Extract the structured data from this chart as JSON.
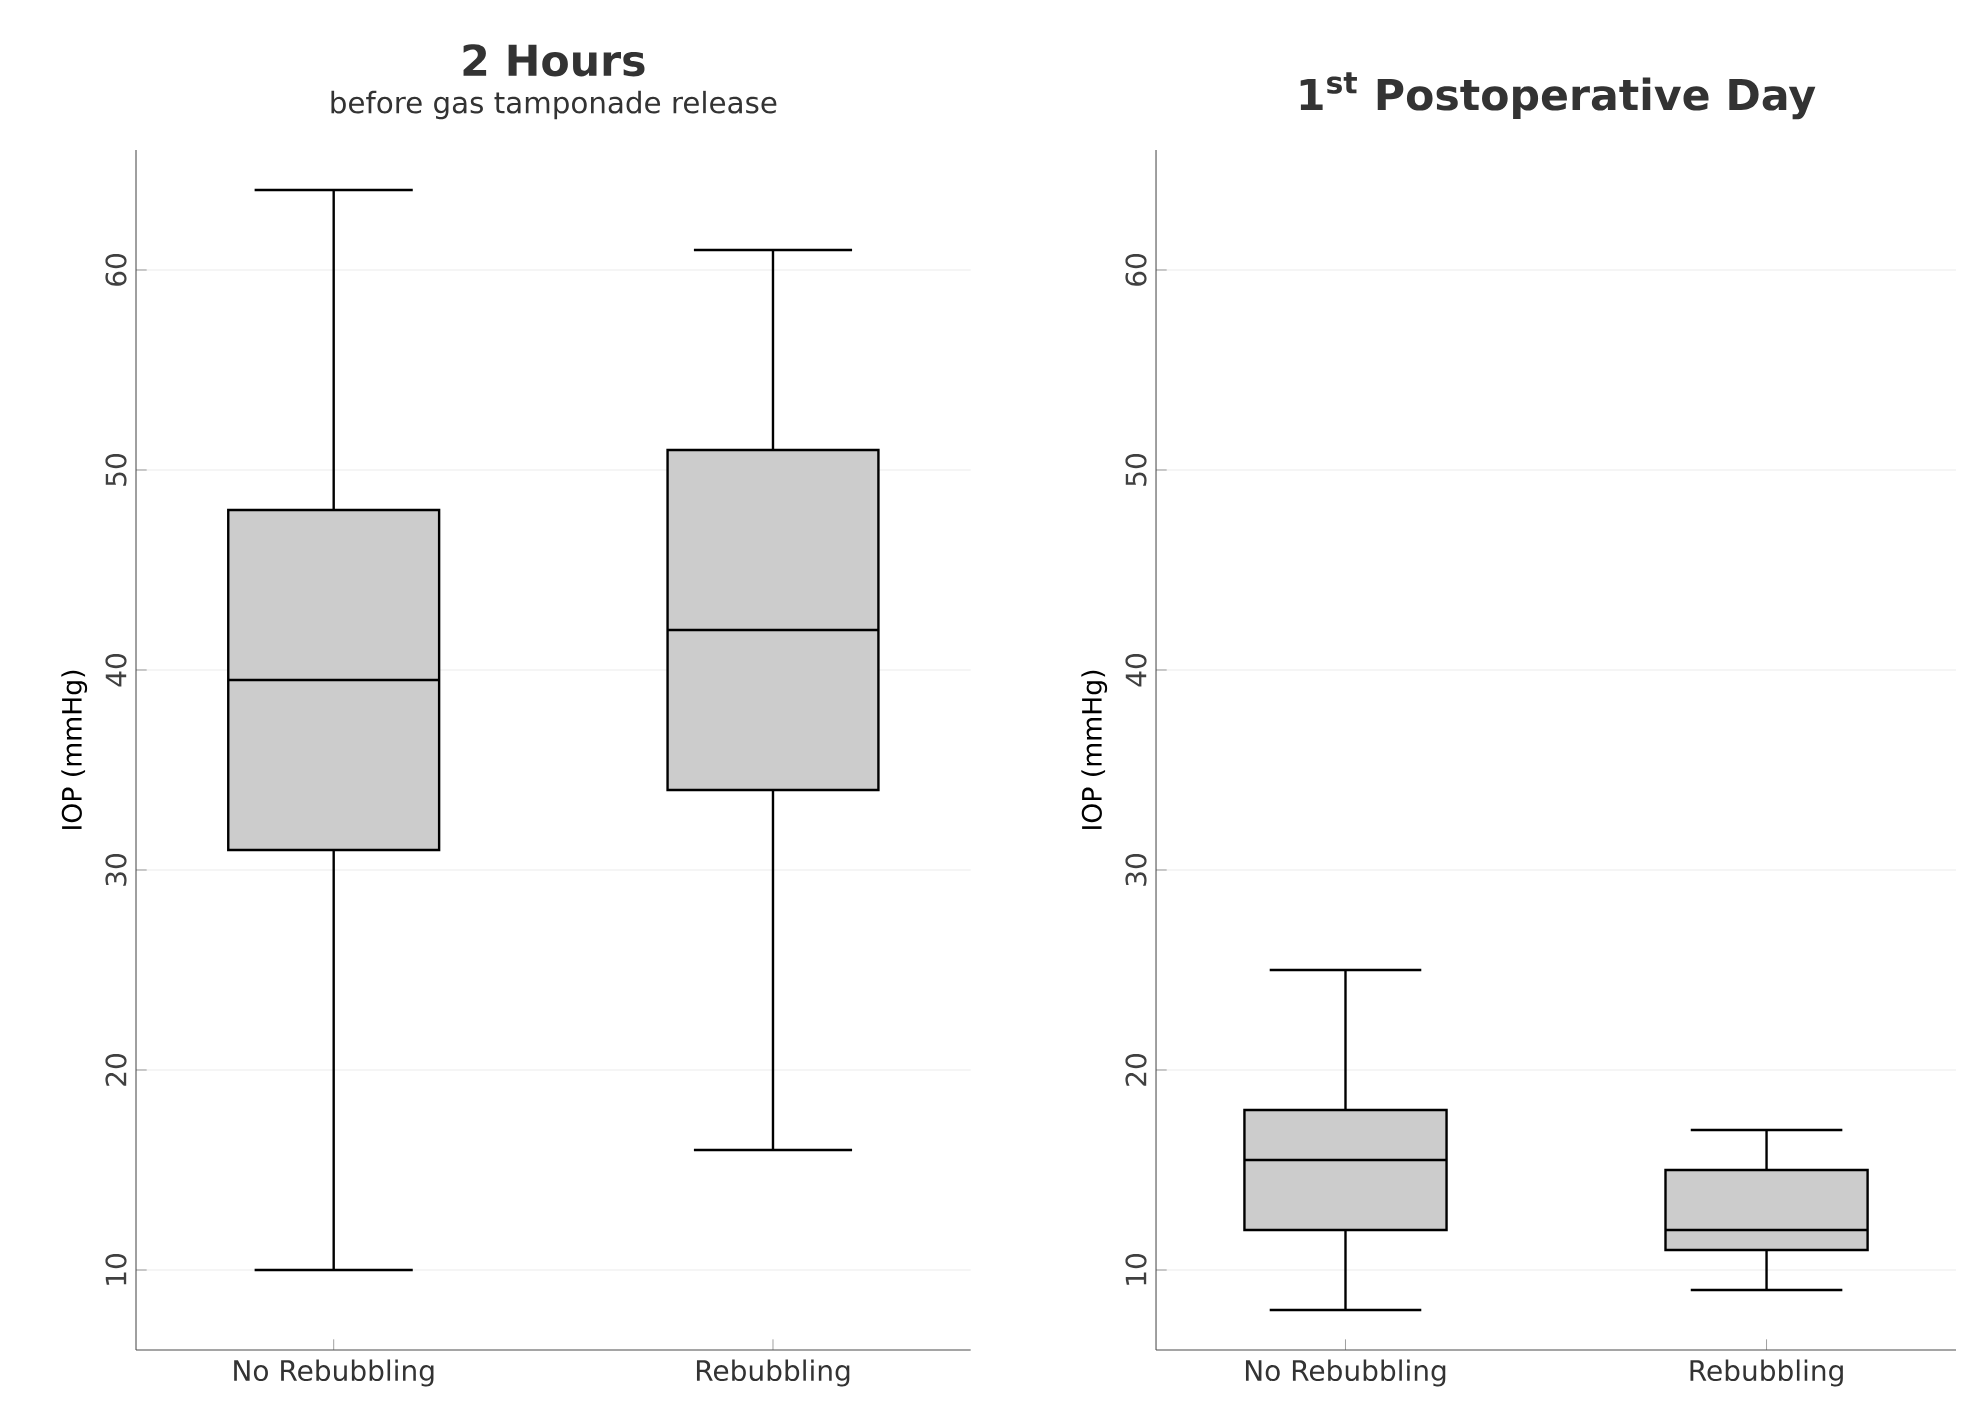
{
  "chart_data": [
    {
      "type": "box",
      "title": "2 Hours",
      "subtitle": "before gas tamponade release",
      "ylabel": "IOP (mmHg)",
      "categories": [
        "No Rebubbling",
        "Rebubbling"
      ],
      "color": "#cccccc",
      "boxes": [
        {
          "low": 10,
          "q1": 31,
          "median": 39.5,
          "q3": 48,
          "high": 64
        },
        {
          "low": 16,
          "q1": 34,
          "median": 42,
          "q3": 51,
          "high": 61
        }
      ],
      "ylim": [
        6,
        66
      ],
      "yticks": [
        10,
        20,
        30,
        40,
        50,
        60
      ],
      "grid": "y"
    },
    {
      "type": "box",
      "title": "1$^{st}$ Postoperative Day",
      "ylabel": "IOP (mmHg)",
      "categories": [
        "No Rebubbling",
        "Rebubbling"
      ],
      "color": "#cccccc",
      "boxes": [
        {
          "low": 8,
          "q1": 12,
          "median": 15.5,
          "q3": 18,
          "high": 25
        },
        {
          "low": 9,
          "q1": 11,
          "median": 12,
          "q3": 15,
          "high": 17
        }
      ],
      "ylim": [
        6,
        66
      ],
      "yticks": [
        10,
        20,
        30,
        40,
        50,
        60
      ],
      "grid": "y"
    }
  ]
}
